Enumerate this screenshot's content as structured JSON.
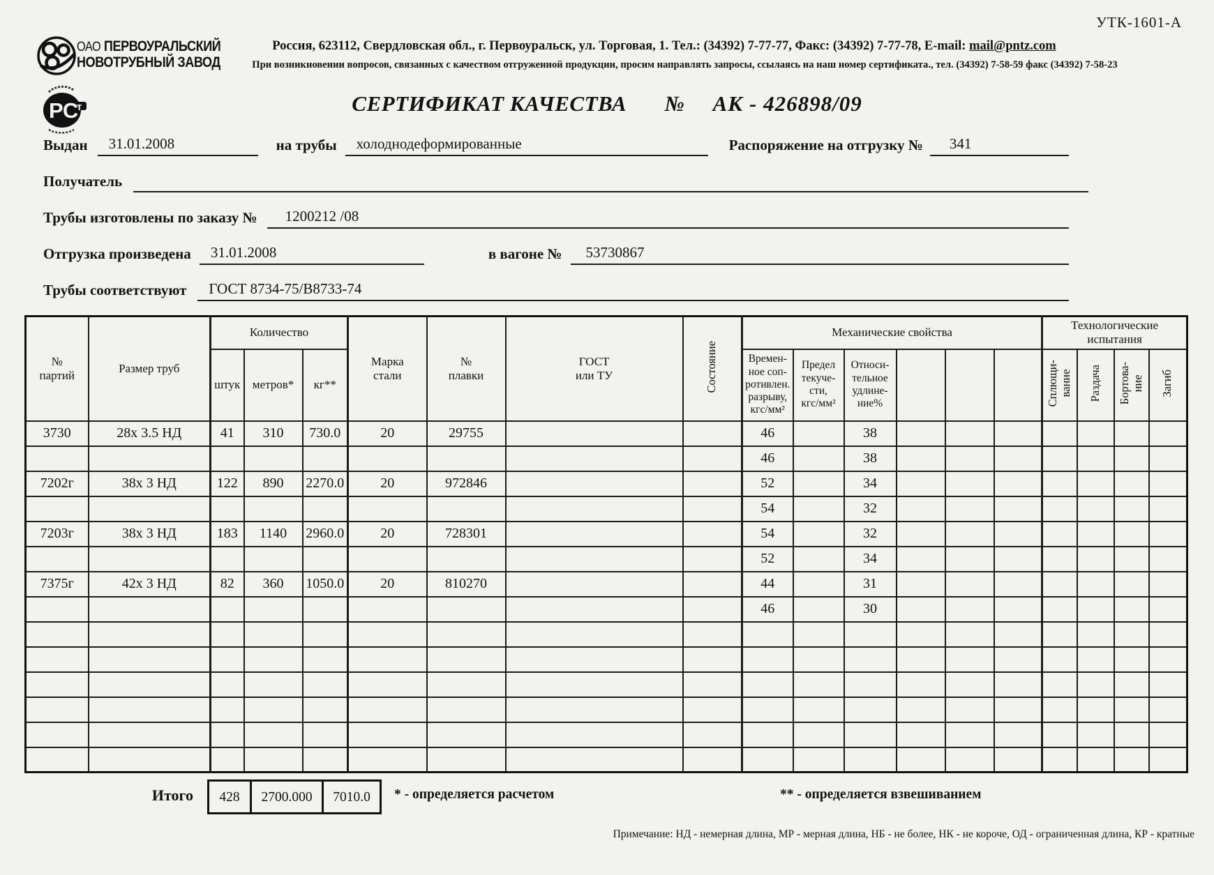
{
  "doc": {
    "form_code": "УТК-1601-А",
    "company": {
      "prefix": "ОАО",
      "name_line1": "ПЕРВОУРАЛЬСКИЙ",
      "name_line2": "НОВОТРУБНЫЙ ЗАВОД"
    },
    "contact_line": "Россия, 623112, Свердловская обл., г. Первоуральск, ул. Торговая, 1. Тел.: (34392) 7-77-77, Факс: (34392) 7-77-78,  E-mail:",
    "email": "mail@pntz.com",
    "quality_note": "При возникновении вопросов, связанных с качеством отгруженной продукции, просим направлять запросы, ссылаясь на наш номер сертификата., тел. (34392) 7-58-59 факс (34392) 7-58-23",
    "title": "СЕРТИФИКАТ КАЧЕСТВА",
    "number_sign": "№",
    "cert_number": "АК - 426898/09"
  },
  "fields": {
    "issued_label": "Выдан",
    "issued_value": "31.01.2008",
    "for_pipes_label": "на трубы",
    "for_pipes_value": "холоднодеформированные",
    "shipping_order_label": "Распоряжение на отгрузку №",
    "shipping_order_value": "341",
    "receiver_label": "Получатель",
    "receiver_value": "",
    "order_label": "Трубы изготовлены по заказу №",
    "order_value": "1200212  /08",
    "shipped_label": "Отгрузка произведена",
    "shipped_value": "31.01.2008",
    "wagon_label": "в вагоне №",
    "wagon_value": "53730867",
    "conform_label": "Трубы соответствуют",
    "conform_value": "ГОСТ 8734-75/В8733-74"
  },
  "table": {
    "headers": {
      "batch": "№\nпартий",
      "size": "Размер труб",
      "quantity_group": "Количество",
      "pieces": "штук",
      "meters": "метров*",
      "kg": "кг**",
      "grade": "Марка\nстали",
      "heat": "№\nплавки",
      "gost": "ГОСТ\nили ТУ",
      "condition": "Состояние",
      "mech_group": "Механические свойства",
      "tensile": "Времен-\nное соп-\nротивлен.\nразрыву,\nкгс/мм²",
      "yield": "Предел\nтекуче-\nсти,\nкгс/мм²",
      "elongation": "Относи-\nтельное\nудлине-\nние%",
      "tech_group": "Технологические\nиспытания",
      "flattening": "Сплющи-\nвание",
      "expansion": "Раздача",
      "flanging": "Бортова-\nние",
      "bend": "Загиб"
    },
    "rows": [
      [
        "3730",
        "28х 3.5 НД",
        "41",
        "310",
        "730.0",
        "20",
        "29755",
        "",
        "",
        "46",
        "",
        "38",
        "",
        "",
        "",
        "",
        "",
        "",
        ""
      ],
      [
        "",
        "",
        "",
        "",
        "",
        "",
        "",
        "",
        "",
        "46",
        "",
        "38",
        "",
        "",
        "",
        "",
        "",
        "",
        ""
      ],
      [
        "7202г",
        "38х 3 НД",
        "122",
        "890",
        "2270.0",
        "20",
        "972846",
        "",
        "",
        "52",
        "",
        "34",
        "",
        "",
        "",
        "",
        "",
        "",
        ""
      ],
      [
        "",
        "",
        "",
        "",
        "",
        "",
        "",
        "",
        "",
        "54",
        "",
        "32",
        "",
        "",
        "",
        "",
        "",
        "",
        ""
      ],
      [
        "7203г",
        "38х 3 НД",
        "183",
        "1140",
        "2960.0",
        "20",
        "728301",
        "",
        "",
        "54",
        "",
        "32",
        "",
        "",
        "",
        "",
        "",
        "",
        ""
      ],
      [
        "",
        "",
        "",
        "",
        "",
        "",
        "",
        "",
        "",
        "52",
        "",
        "34",
        "",
        "",
        "",
        "",
        "",
        "",
        ""
      ],
      [
        "7375г",
        "42х 3 НД",
        "82",
        "360",
        "1050.0",
        "20",
        "810270",
        "",
        "",
        "44",
        "",
        "31",
        "",
        "",
        "",
        "",
        "",
        "",
        ""
      ],
      [
        "",
        "",
        "",
        "",
        "",
        "",
        "",
        "",
        "",
        "46",
        "",
        "30",
        "",
        "",
        "",
        "",
        "",
        "",
        ""
      ],
      [
        "",
        "",
        "",
        "",
        "",
        "",
        "",
        "",
        "",
        "",
        "",
        "",
        "",
        "",
        "",
        "",
        "",
        "",
        ""
      ],
      [
        "",
        "",
        "",
        "",
        "",
        "",
        "",
        "",
        "",
        "",
        "",
        "",
        "",
        "",
        "",
        "",
        "",
        "",
        ""
      ],
      [
        "",
        "",
        "",
        "",
        "",
        "",
        "",
        "",
        "",
        "",
        "",
        "",
        "",
        "",
        "",
        "",
        "",
        "",
        ""
      ],
      [
        "",
        "",
        "",
        "",
        "",
        "",
        "",
        "",
        "",
        "",
        "",
        "",
        "",
        "",
        "",
        "",
        "",
        "",
        ""
      ],
      [
        "",
        "",
        "",
        "",
        "",
        "",
        "",
        "",
        "",
        "",
        "",
        "",
        "",
        "",
        "",
        "",
        "",
        "",
        ""
      ],
      [
        "",
        "",
        "",
        "",
        "",
        "",
        "",
        "",
        "",
        "",
        "",
        "",
        "",
        "",
        "",
        "",
        "",
        "",
        ""
      ]
    ]
  },
  "summary": {
    "total_label": "Итого",
    "pieces": "428",
    "meters": "2700.000",
    "kg": "7010.0",
    "footnote1": "* - определяется расчетом",
    "footnote2": "** - определяется взвешиванием",
    "note": "Примечание: НД - немерная длина, МР - мерная длина, НБ - не более, НК - не короче, ОД - ограниченная длина, КР - кратные"
  }
}
